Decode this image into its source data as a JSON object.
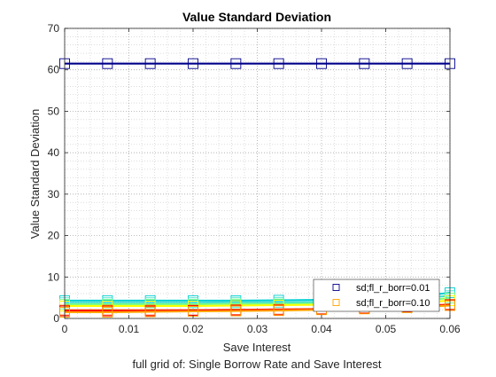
{
  "chart_data": {
    "type": "line",
    "title": "Value Standard Deviation",
    "xlabel": "Save Interest",
    "ylabel": "Value Standard Deviation",
    "caption": "full grid of: Single Borrow Rate and Save Interest",
    "xlim": [
      0,
      0.06
    ],
    "ylim": [
      0,
      70
    ],
    "xticks": [
      0,
      0.01,
      0.02,
      0.03,
      0.04,
      0.05,
      0.06
    ],
    "xtick_labels": [
      "0",
      "0.01",
      "0.02",
      "0.03",
      "0.04",
      "0.05",
      "0.06"
    ],
    "yticks": [
      0,
      10,
      20,
      30,
      40,
      50,
      60,
      70
    ],
    "ytick_labels": [
      "0",
      "10",
      "20",
      "30",
      "40",
      "50",
      "60",
      "70"
    ],
    "grid": "on (major and minor, dotted)",
    "legend_position": "bottom-right",
    "marker": "square",
    "x": [
      0,
      0.00667,
      0.01333,
      0.02,
      0.02667,
      0.03333,
      0.04,
      0.04667,
      0.05333,
      0.06
    ],
    "series": [
      {
        "name": "sd;fl_r_borr=0.01",
        "color": "#00008b",
        "legend": true,
        "values": [
          61.5,
          61.5,
          61.5,
          61.5,
          61.5,
          61.5,
          61.5,
          61.5,
          61.5,
          61.5
        ]
      },
      {
        "name": "sd;fl_r_borr=0.10",
        "color": "#ffa500",
        "legend": true,
        "values": [
          1.5,
          1.5,
          1.6,
          1.7,
          1.8,
          1.9,
          2.1,
          2.3,
          2.6,
          3.1
        ]
      },
      {
        "color": "#00ced1",
        "legend": false,
        "values": [
          4.3,
          4.3,
          4.3,
          4.3,
          4.3,
          4.4,
          4.5,
          4.7,
          5.0,
          6.2
        ]
      },
      {
        "color": "#40e0d0",
        "legend": false,
        "values": [
          3.8,
          3.8,
          3.8,
          3.8,
          3.9,
          3.9,
          4.0,
          4.2,
          4.5,
          5.5
        ]
      },
      {
        "color": "#7fff7f",
        "legend": false,
        "values": [
          3.4,
          3.4,
          3.4,
          3.4,
          3.5,
          3.5,
          3.6,
          3.8,
          4.1,
          4.9
        ]
      },
      {
        "color": "#ffff00",
        "legend": false,
        "values": [
          3.0,
          3.0,
          3.0,
          3.0,
          3.1,
          3.2,
          3.3,
          3.4,
          3.7,
          4.3
        ]
      },
      {
        "color": "#ff4500",
        "legend": false,
        "values": [
          2.0,
          2.0,
          2.0,
          2.0,
          2.1,
          2.2,
          2.3,
          2.5,
          2.8,
          3.4
        ]
      },
      {
        "color": "#ff0000",
        "legend": false,
        "values": [
          1.8,
          1.8,
          1.8,
          1.9,
          2.0,
          2.0,
          2.2,
          2.4,
          2.7,
          3.2
        ]
      }
    ]
  }
}
